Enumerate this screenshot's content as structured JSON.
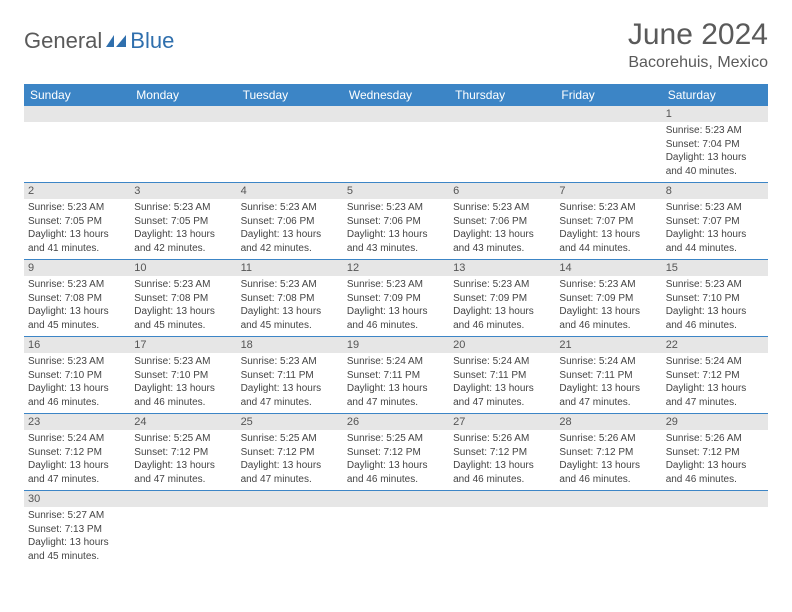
{
  "logo": {
    "text1": "General",
    "text2": "Blue"
  },
  "title": "June 2024",
  "location": "Bacorehuis, Mexico",
  "colors": {
    "header_bg": "#3c85c6",
    "header_text": "#ffffff",
    "daynum_bg": "#e6e6e6",
    "rule": "#3c85c6",
    "logo_gray": "#5a5a5a",
    "logo_blue": "#2f6fad"
  },
  "day_labels": [
    "Sunday",
    "Monday",
    "Tuesday",
    "Wednesday",
    "Thursday",
    "Friday",
    "Saturday"
  ],
  "weeks": [
    [
      {
        "n": "",
        "sr": "",
        "ss": "",
        "dl": ""
      },
      {
        "n": "",
        "sr": "",
        "ss": "",
        "dl": ""
      },
      {
        "n": "",
        "sr": "",
        "ss": "",
        "dl": ""
      },
      {
        "n": "",
        "sr": "",
        "ss": "",
        "dl": ""
      },
      {
        "n": "",
        "sr": "",
        "ss": "",
        "dl": ""
      },
      {
        "n": "",
        "sr": "",
        "ss": "",
        "dl": ""
      },
      {
        "n": "1",
        "sr": "5:23 AM",
        "ss": "7:04 PM",
        "dl": "13 hours and 40 minutes."
      }
    ],
    [
      {
        "n": "2",
        "sr": "5:23 AM",
        "ss": "7:05 PM",
        "dl": "13 hours and 41 minutes."
      },
      {
        "n": "3",
        "sr": "5:23 AM",
        "ss": "7:05 PM",
        "dl": "13 hours and 42 minutes."
      },
      {
        "n": "4",
        "sr": "5:23 AM",
        "ss": "7:06 PM",
        "dl": "13 hours and 42 minutes."
      },
      {
        "n": "5",
        "sr": "5:23 AM",
        "ss": "7:06 PM",
        "dl": "13 hours and 43 minutes."
      },
      {
        "n": "6",
        "sr": "5:23 AM",
        "ss": "7:06 PM",
        "dl": "13 hours and 43 minutes."
      },
      {
        "n": "7",
        "sr": "5:23 AM",
        "ss": "7:07 PM",
        "dl": "13 hours and 44 minutes."
      },
      {
        "n": "8",
        "sr": "5:23 AM",
        "ss": "7:07 PM",
        "dl": "13 hours and 44 minutes."
      }
    ],
    [
      {
        "n": "9",
        "sr": "5:23 AM",
        "ss": "7:08 PM",
        "dl": "13 hours and 45 minutes."
      },
      {
        "n": "10",
        "sr": "5:23 AM",
        "ss": "7:08 PM",
        "dl": "13 hours and 45 minutes."
      },
      {
        "n": "11",
        "sr": "5:23 AM",
        "ss": "7:08 PM",
        "dl": "13 hours and 45 minutes."
      },
      {
        "n": "12",
        "sr": "5:23 AM",
        "ss": "7:09 PM",
        "dl": "13 hours and 46 minutes."
      },
      {
        "n": "13",
        "sr": "5:23 AM",
        "ss": "7:09 PM",
        "dl": "13 hours and 46 minutes."
      },
      {
        "n": "14",
        "sr": "5:23 AM",
        "ss": "7:09 PM",
        "dl": "13 hours and 46 minutes."
      },
      {
        "n": "15",
        "sr": "5:23 AM",
        "ss": "7:10 PM",
        "dl": "13 hours and 46 minutes."
      }
    ],
    [
      {
        "n": "16",
        "sr": "5:23 AM",
        "ss": "7:10 PM",
        "dl": "13 hours and 46 minutes."
      },
      {
        "n": "17",
        "sr": "5:23 AM",
        "ss": "7:10 PM",
        "dl": "13 hours and 46 minutes."
      },
      {
        "n": "18",
        "sr": "5:23 AM",
        "ss": "7:11 PM",
        "dl": "13 hours and 47 minutes."
      },
      {
        "n": "19",
        "sr": "5:24 AM",
        "ss": "7:11 PM",
        "dl": "13 hours and 47 minutes."
      },
      {
        "n": "20",
        "sr": "5:24 AM",
        "ss": "7:11 PM",
        "dl": "13 hours and 47 minutes."
      },
      {
        "n": "21",
        "sr": "5:24 AM",
        "ss": "7:11 PM",
        "dl": "13 hours and 47 minutes."
      },
      {
        "n": "22",
        "sr": "5:24 AM",
        "ss": "7:12 PM",
        "dl": "13 hours and 47 minutes."
      }
    ],
    [
      {
        "n": "23",
        "sr": "5:24 AM",
        "ss": "7:12 PM",
        "dl": "13 hours and 47 minutes."
      },
      {
        "n": "24",
        "sr": "5:25 AM",
        "ss": "7:12 PM",
        "dl": "13 hours and 47 minutes."
      },
      {
        "n": "25",
        "sr": "5:25 AM",
        "ss": "7:12 PM",
        "dl": "13 hours and 47 minutes."
      },
      {
        "n": "26",
        "sr": "5:25 AM",
        "ss": "7:12 PM",
        "dl": "13 hours and 46 minutes."
      },
      {
        "n": "27",
        "sr": "5:26 AM",
        "ss": "7:12 PM",
        "dl": "13 hours and 46 minutes."
      },
      {
        "n": "28",
        "sr": "5:26 AM",
        "ss": "7:12 PM",
        "dl": "13 hours and 46 minutes."
      },
      {
        "n": "29",
        "sr": "5:26 AM",
        "ss": "7:12 PM",
        "dl": "13 hours and 46 minutes."
      }
    ],
    [
      {
        "n": "30",
        "sr": "5:27 AM",
        "ss": "7:13 PM",
        "dl": "13 hours and 45 minutes."
      },
      {
        "n": "",
        "sr": "",
        "ss": "",
        "dl": ""
      },
      {
        "n": "",
        "sr": "",
        "ss": "",
        "dl": ""
      },
      {
        "n": "",
        "sr": "",
        "ss": "",
        "dl": ""
      },
      {
        "n": "",
        "sr": "",
        "ss": "",
        "dl": ""
      },
      {
        "n": "",
        "sr": "",
        "ss": "",
        "dl": ""
      },
      {
        "n": "",
        "sr": "",
        "ss": "",
        "dl": ""
      }
    ]
  ],
  "labels": {
    "sunrise": "Sunrise: ",
    "sunset": "Sunset: ",
    "daylight": "Daylight: "
  }
}
